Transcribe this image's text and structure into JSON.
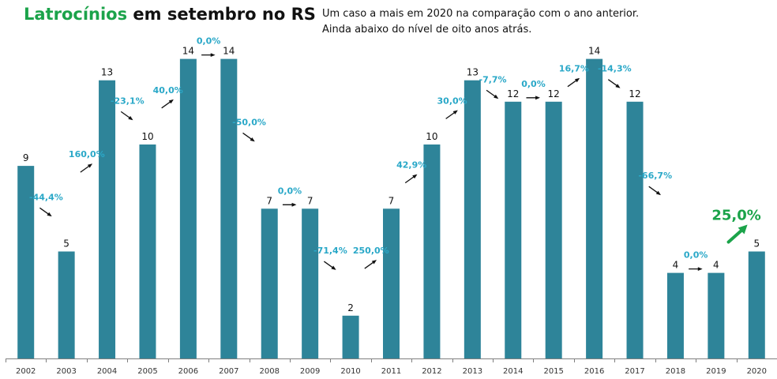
{
  "header": {
    "title_highlight": "Latrocínios",
    "title_rest": "em setembro no RS",
    "subtitle_line1": "Um caso a mais em 2020 na comparação com o ano anterior.",
    "subtitle_line2": "Ainda abaixo do nível de oito anos atrás."
  },
  "colors": {
    "bar": "#2e8499",
    "pct_label": "#2aa8c8",
    "highlight": "#1ba34a",
    "axis": "#7f7f7f",
    "arrow": "#111111"
  },
  "chart_data": {
    "type": "bar",
    "title": "Latrocínios em setembro no RS",
    "categories": [
      "2002",
      "2003",
      "2004",
      "2005",
      "2006",
      "2007",
      "2008",
      "2009",
      "2010",
      "2011",
      "2012",
      "2013",
      "2014",
      "2015",
      "2016",
      "2017",
      "2018",
      "2019",
      "2020"
    ],
    "values": [
      9,
      5,
      13,
      10,
      14,
      14,
      7,
      7,
      2,
      7,
      10,
      13,
      12,
      12,
      14,
      12,
      4,
      4,
      5
    ],
    "ylim": [
      0,
      16
    ],
    "grid": false,
    "changes": [
      {
        "label": "-44,4%",
        "dir": "down"
      },
      {
        "label": "160,0%",
        "dir": "up"
      },
      {
        "label": "-23,1%",
        "dir": "down"
      },
      {
        "label": "40,0%",
        "dir": "up"
      },
      {
        "label": "0,0%",
        "dir": "flat"
      },
      {
        "label": "-50,0%",
        "dir": "down"
      },
      {
        "label": "0,0%",
        "dir": "flat"
      },
      {
        "label": "-71,4%",
        "dir": "down"
      },
      {
        "label": "250,0%",
        "dir": "up"
      },
      {
        "label": "42,9%",
        "dir": "up"
      },
      {
        "label": "30,0%",
        "dir": "up"
      },
      {
        "label": "-7,7%",
        "dir": "down"
      },
      {
        "label": "0,0%",
        "dir": "flat"
      },
      {
        "label": "16,7%",
        "dir": "up"
      },
      {
        "label": "-14,3%",
        "dir": "down"
      },
      {
        "label": "-66,7%",
        "dir": "down"
      },
      {
        "label": "0,0%",
        "dir": "flat"
      },
      {
        "label": "25,0%",
        "dir": "up",
        "highlight": true
      }
    ]
  }
}
